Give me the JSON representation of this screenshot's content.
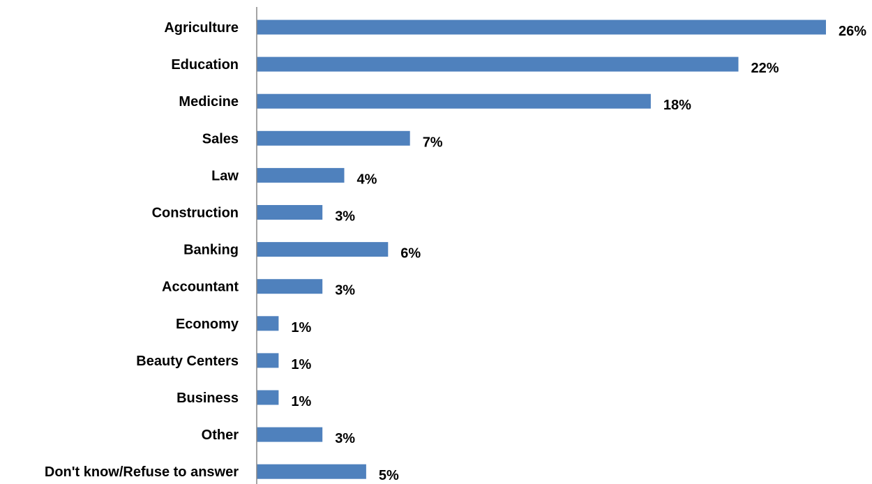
{
  "chart_data": {
    "type": "bar",
    "orientation": "horizontal",
    "categories": [
      "Agriculture",
      "Education",
      "Medicine",
      "Sales",
      "Law",
      "Construction",
      "Banking",
      "Accountant",
      "Economy",
      "Beauty Centers",
      "Business",
      "Other",
      "Don't know/Refuse to answer"
    ],
    "values": [
      26,
      22,
      18,
      7,
      4,
      3,
      6,
      3,
      1,
      1,
      1,
      3,
      5
    ],
    "value_labels": [
      "26%",
      "22%",
      "18%",
      "7%",
      "4%",
      "3%",
      "6%",
      "3%",
      "1%",
      "1%",
      "1%",
      "3%",
      "5%"
    ],
    "unit": "%",
    "xlim": [
      0,
      26
    ],
    "grid": false,
    "legend": "none",
    "colors": {
      "bar": "#4F81BD",
      "axis": "#868686",
      "text": "#000000"
    }
  }
}
